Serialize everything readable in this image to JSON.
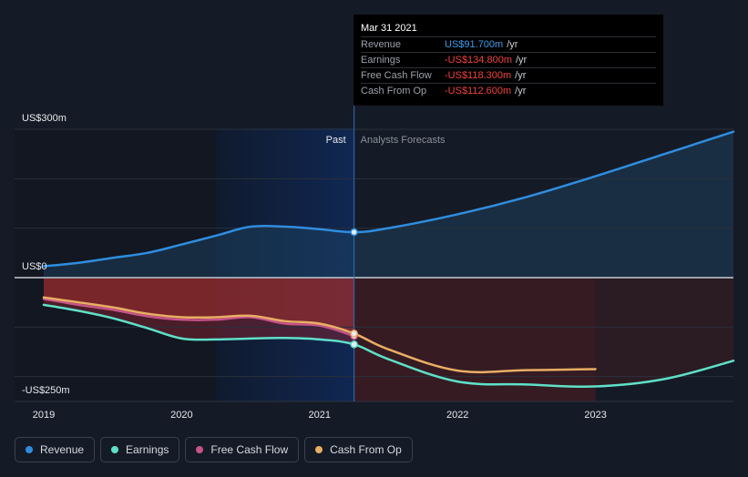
{
  "tooltip": {
    "date": "Mar 31 2021",
    "rows": [
      {
        "label": "Revenue",
        "value": "US$91.700m",
        "unit": "/yr",
        "color": "#3d9be9"
      },
      {
        "label": "Earnings",
        "value": "-US$134.800m",
        "unit": "/yr",
        "color": "#f0433a"
      },
      {
        "label": "Free Cash Flow",
        "value": "-US$118.300m",
        "unit": "/yr",
        "color": "#f0433a"
      },
      {
        "label": "Cash From Op",
        "value": "-US$112.600m",
        "unit": "/yr",
        "color": "#f0433a"
      }
    ]
  },
  "legend": [
    {
      "label": "Revenue",
      "color": "#2f8de0"
    },
    {
      "label": "Earnings",
      "color": "#5fe0c8"
    },
    {
      "label": "Free Cash Flow",
      "color": "#c7538a"
    },
    {
      "label": "Cash From Op",
      "color": "#e9ae63"
    }
  ],
  "chart_data": {
    "type": "area",
    "title": "",
    "xlabel": "",
    "ylabel": "",
    "ylim": [
      -250,
      300
    ],
    "xlim": [
      2019,
      2024
    ],
    "x_ticks": [
      2019,
      2020,
      2021,
      2022,
      2023
    ],
    "y_labels": [
      {
        "value": 300,
        "text": "US$300m"
      },
      {
        "value": 0,
        "text": "US$0"
      },
      {
        "value": -250,
        "text": "-US$250m"
      }
    ],
    "past_label": "Past",
    "forecast_label": "Analysts Forecasts",
    "past_end": 2021.25,
    "highlight_start": 2020.25,
    "forecast_band_end": 2023,
    "series": [
      {
        "name": "Revenue",
        "color": "#2f8de0",
        "points": [
          [
            2019,
            23
          ],
          [
            2019.25,
            30
          ],
          [
            2019.5,
            40
          ],
          [
            2019.75,
            50
          ],
          [
            2020,
            67
          ],
          [
            2020.25,
            85
          ],
          [
            2020.5,
            103
          ],
          [
            2020.75,
            103
          ],
          [
            2021,
            98
          ],
          [
            2021.25,
            92
          ],
          [
            2021.5,
            100
          ],
          [
            2022,
            128
          ],
          [
            2022.5,
            163
          ],
          [
            2023,
            205
          ],
          [
            2023.5,
            250
          ],
          [
            2024,
            295
          ]
        ]
      },
      {
        "name": "Earnings",
        "color": "#5fe0c8",
        "points": [
          [
            2019,
            -55
          ],
          [
            2019.25,
            -67
          ],
          [
            2019.5,
            -82
          ],
          [
            2019.75,
            -102
          ],
          [
            2020,
            -123
          ],
          [
            2020.25,
            -125
          ],
          [
            2020.5,
            -123
          ],
          [
            2020.75,
            -122
          ],
          [
            2021,
            -125
          ],
          [
            2021.25,
            -135
          ],
          [
            2021.5,
            -165
          ],
          [
            2022,
            -210
          ],
          [
            2022.5,
            -216
          ],
          [
            2023,
            -220
          ],
          [
            2023.5,
            -205
          ],
          [
            2024,
            -168
          ]
        ]
      },
      {
        "name": "Free Cash Flow",
        "color": "#c7538a",
        "points": [
          [
            2019,
            -43
          ],
          [
            2019.25,
            -55
          ],
          [
            2019.5,
            -65
          ],
          [
            2019.75,
            -78
          ],
          [
            2020,
            -85
          ],
          [
            2020.25,
            -85
          ],
          [
            2020.5,
            -80
          ],
          [
            2020.75,
            -93
          ],
          [
            2021,
            -97
          ],
          [
            2021.25,
            -118
          ]
        ]
      },
      {
        "name": "Cash From Op",
        "color": "#e9ae63",
        "points": [
          [
            2019,
            -40
          ],
          [
            2019.25,
            -50
          ],
          [
            2019.5,
            -60
          ],
          [
            2019.75,
            -73
          ],
          [
            2020,
            -80
          ],
          [
            2020.25,
            -80
          ],
          [
            2020.5,
            -77
          ],
          [
            2020.75,
            -88
          ],
          [
            2021,
            -93
          ],
          [
            2021.25,
            -113
          ],
          [
            2021.5,
            -145
          ],
          [
            2022,
            -188
          ],
          [
            2022.5,
            -187
          ],
          [
            2023,
            -185
          ]
        ]
      }
    ]
  }
}
